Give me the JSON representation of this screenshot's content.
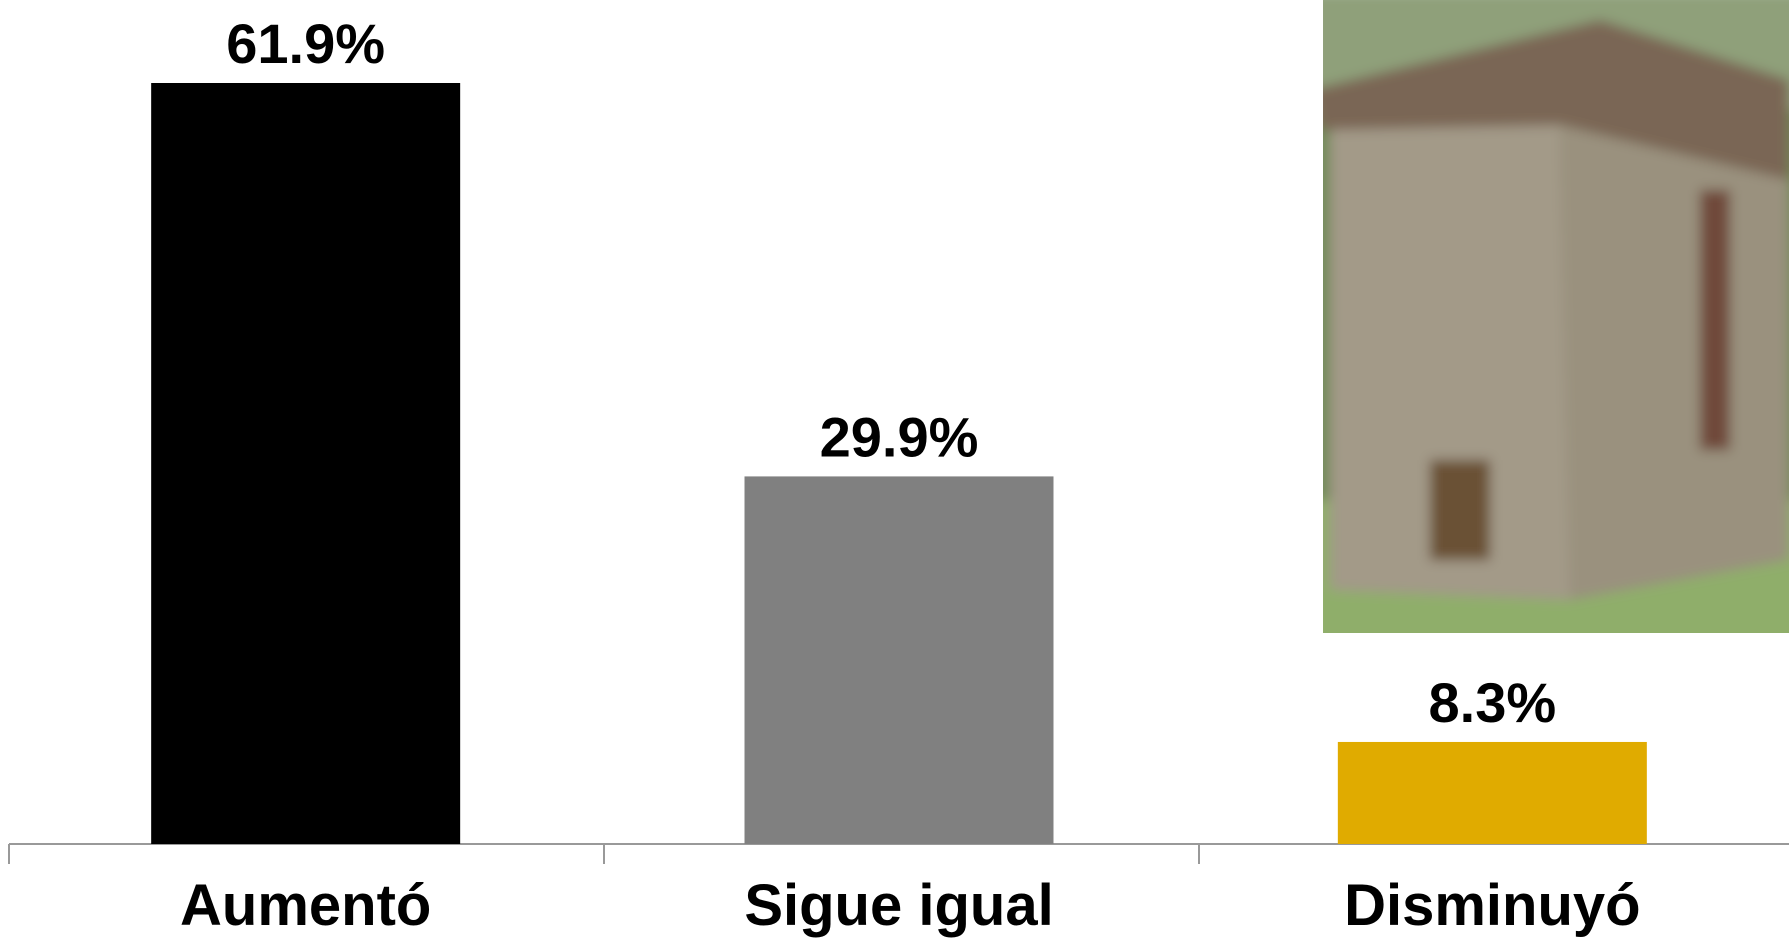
{
  "chart_data": {
    "type": "bar",
    "categories": [
      "Aumentó",
      "Sigue igual",
      "Disminuyó"
    ],
    "values": [
      61.9,
      29.9,
      8.3
    ],
    "value_labels": [
      "61.9%",
      "29.9%",
      "8.3%"
    ],
    "colors": [
      "#000000",
      "#808080",
      "#e0ab00"
    ]
  }
}
